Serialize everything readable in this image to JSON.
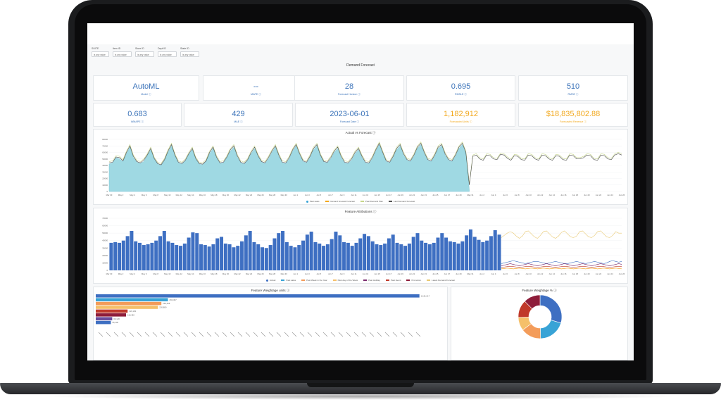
{
  "filters": [
    {
      "label": "SUITE",
      "value": "is any value"
    },
    {
      "label": "Item ID",
      "value": "is any value"
    },
    {
      "label": "Store ID",
      "value": "is any value"
    },
    {
      "label": "Dept ID",
      "value": "is any value"
    },
    {
      "label": "State ID",
      "value": "is any value"
    }
  ],
  "dashboard_title": "Demand Forecast",
  "kpis_row1": [
    {
      "value": "AutoML",
      "label": "Model"
    },
    {
      "value": "--",
      "label": "MAPE"
    },
    {
      "value": "28",
      "label": "Forecast Horizon"
    },
    {
      "value": "0.695",
      "label": "RMSLE"
    },
    {
      "value": "510",
      "label": "RMSE"
    }
  ],
  "kpis_row2": [
    {
      "value": "0.683",
      "label": "WMAPE"
    },
    {
      "value": "429",
      "label": "MAE"
    },
    {
      "value": "2023-06-01",
      "label": "Forecast Date"
    },
    {
      "value": "1,182,912",
      "label": "Forecasted Units"
    },
    {
      "value": "$18,835,802.88",
      "label": "Forecasted Revenue"
    }
  ],
  "colors": {
    "blue": "#3b73b9",
    "orange": "#f2a81d",
    "teal_fill": "#9fd9e3",
    "bar_blue": "#3e6fc2"
  },
  "chart_data": [
    {
      "type": "area",
      "title": "Actual vs Forecast",
      "legend": [
        "Past sales",
        "Demand forecast Forecast",
        "Past Demand Plan",
        "Last Demand Forecast"
      ],
      "ylim": [
        0,
        80000
      ],
      "y_ticks": [
        "80000",
        "70000",
        "60000",
        "50000",
        "40000",
        "30000",
        "20000",
        "10000",
        "0"
      ],
      "x_ticks": [
        "Mar 30",
        "May 2",
        "May 4",
        "May 6",
        "May 8",
        "May 10",
        "May 12",
        "May 14",
        "May 16",
        "May 18",
        "May 20",
        "May 22",
        "May 24",
        "May 26",
        "May 28",
        "May 30",
        "Jun 1",
        "Jun 3",
        "Jun 5",
        "Jun 7",
        "Jun 9",
        "Jun 11",
        "Jun 13",
        "Jun 15",
        "Jun 17",
        "Jun 19",
        "Jun 21",
        "Jun 23",
        "Jun 25",
        "Jun 27",
        "Jun 29",
        "May 31",
        "Jun 2",
        "Jun 4",
        "Jun 6",
        "Jun 8",
        "Jun 10",
        "Jun 12",
        "Jun 14",
        "Jun 16",
        "Jun 18",
        "Jun 20",
        "Jun 22",
        "Jun 24",
        "Jun 26"
      ],
      "past_sales": [
        42000,
        44000,
        52000,
        50000,
        46000,
        58000,
        68000,
        52000,
        45000,
        43000,
        46000,
        55000,
        64000,
        50000,
        42000,
        40000,
        48000,
        60000,
        70000,
        55000,
        44000,
        42000,
        47000,
        57000,
        64000,
        50000,
        42000,
        41000,
        46000,
        58000,
        66000,
        52000,
        43000,
        44000,
        52000,
        62000,
        68000,
        53000,
        44000,
        42000,
        48000,
        58000,
        66000,
        54000,
        45000,
        43000,
        50000,
        60000,
        68000,
        54000,
        44000,
        43000,
        50000,
        62000,
        70000,
        56000,
        46000,
        44000,
        52000,
        64000,
        70000,
        55000,
        45000,
        44000,
        50000,
        60000,
        66000,
        52000,
        44000,
        43000,
        48000,
        58000,
        64000,
        52000,
        44000,
        43000,
        50000,
        62000,
        72000,
        58000,
        46000,
        44000,
        52000,
        64000,
        70000,
        56000,
        48000,
        46000,
        54000,
        66000,
        72000,
        58000,
        48000,
        46000,
        54000,
        66000,
        70000,
        56000,
        48000,
        46000,
        54000,
        66000,
        72000,
        58000,
        2000
      ],
      "forecast": [
        44000,
        45000,
        53000,
        52000,
        47000,
        60000,
        70000,
        54000,
        46000,
        44000,
        48000,
        56000,
        66000,
        51000,
        43000,
        41000,
        49000,
        62000,
        72000,
        56000,
        45000,
        43000,
        48000,
        58000,
        66000,
        51000,
        43000,
        42000,
        47000,
        60000,
        68000,
        53000,
        44000,
        45000,
        53000,
        64000,
        70000,
        55000,
        45000,
        43000,
        49000,
        60000,
        68000,
        55000,
        46000,
        44000,
        52000,
        62000,
        70000,
        56000,
        45000,
        44000,
        52000,
        64000,
        72000,
        58000,
        47000,
        45000,
        54000,
        66000,
        72000,
        56000,
        46000,
        45000,
        52000,
        62000,
        68000,
        54000,
        45000,
        44000,
        50000,
        60000,
        66000,
        54000,
        45000,
        44000,
        52000,
        64000,
        74000,
        60000,
        47000,
        45000,
        54000,
        66000,
        72000,
        58000,
        49000,
        47000,
        56000,
        68000,
        74000,
        60000,
        49000,
        47000,
        56000,
        68000,
        72000,
        58000,
        49000,
        47000,
        56000,
        68000,
        74000,
        60000,
        10000,
        54000,
        56000,
        50000,
        48000,
        56000,
        55000,
        50000,
        49000,
        57000,
        56000,
        51000,
        48000,
        55000,
        54000,
        49000,
        48000,
        56000,
        55000,
        50000,
        48000,
        56000,
        55000,
        50000,
        48000,
        55000,
        54000,
        49000,
        48000,
        56000,
        55000,
        50000,
        50000,
        52000,
        56000,
        55000,
        49000,
        48000,
        56000,
        55000,
        50000,
        49000,
        56000,
        58000,
        56000
      ],
      "demand_plan": [
        46000,
        47000,
        55000,
        54000,
        49000,
        62000,
        72000,
        56000,
        48000,
        46000,
        50000,
        58000,
        68000,
        53000,
        45000,
        43000,
        51000,
        64000,
        74000,
        58000,
        47000,
        45000,
        50000,
        60000,
        68000,
        53000,
        45000,
        44000,
        49000,
        62000,
        70000,
        55000,
        46000,
        47000,
        55000,
        66000,
        72000,
        57000,
        47000,
        45000,
        51000,
        62000,
        70000,
        57000,
        48000,
        46000,
        54000,
        64000,
        72000,
        58000,
        47000,
        46000,
        54000,
        66000,
        74000,
        60000,
        49000,
        47000,
        56000,
        68000,
        74000,
        58000,
        48000,
        47000,
        54000,
        64000,
        70000,
        56000,
        47000,
        46000,
        52000,
        62000,
        68000,
        56000,
        47000,
        46000,
        54000,
        66000,
        76000,
        62000,
        49000,
        47000,
        56000,
        68000,
        74000,
        60000,
        51000,
        49000,
        58000,
        70000,
        76000,
        62000,
        51000,
        49000,
        58000,
        70000,
        74000,
        60000,
        51000,
        49000,
        58000,
        70000,
        76000,
        62000,
        12000,
        56000,
        58000,
        52000,
        50000,
        58000,
        57000,
        52000,
        51000,
        59000,
        58000,
        53000,
        50000,
        57000,
        56000,
        51000,
        50000,
        58000,
        57000,
        52000,
        50000,
        58000,
        57000,
        52000,
        50000,
        57000,
        56000,
        51000,
        50000,
        58000,
        57000,
        52000,
        52000,
        54000,
        58000,
        57000,
        51000,
        50000,
        58000,
        57000,
        52000,
        51000,
        58000,
        60000,
        58000
      ]
    },
    {
      "type": "bar",
      "title": "Feature Attributions",
      "legend": [
        "Actual",
        "Past sales",
        "Past Week in the Year",
        "Past day of the Week",
        "Past Holiday",
        "Past Event",
        "Promotion",
        "Latest Demand Forecast"
      ],
      "ylim": [
        0,
        70000
      ],
      "y_ticks": [
        "70000",
        "60000",
        "50000",
        "40000",
        "30000",
        "20000",
        "10000",
        "0"
      ],
      "x_ticks": [
        "Mar 30",
        "May 2",
        "May 4",
        "May 6",
        "May 8",
        "May 10",
        "May 12",
        "May 14",
        "May 16",
        "May 18",
        "May 20",
        "May 22",
        "May 24",
        "May 26",
        "May 28",
        "May 30",
        "Jun 1",
        "Jun 3",
        "Jun 5",
        "Jun 7",
        "Jun 9",
        "Jun 11",
        "Jun 13",
        "Jun 15",
        "Jun 17",
        "Jun 19",
        "Jun 21",
        "Jun 23",
        "Jun 25",
        "Jun 27",
        "Jun 29",
        "May 31",
        "Jun 2",
        "Jun 4",
        "Jun 6",
        "Jun 8",
        "Jun 10",
        "Jun 12",
        "Jun 14",
        "Jun 16",
        "Jun 18",
        "Jun 20",
        "Jun 22",
        "Jun 24",
        "Jun 26"
      ],
      "values": [
        37000,
        38000,
        37000,
        40000,
        46000,
        53000,
        39000,
        37000,
        34000,
        35000,
        37000,
        40000,
        46000,
        53000,
        39000,
        37000,
        34000,
        33000,
        36000,
        44000,
        51000,
        50000,
        35000,
        34000,
        32000,
        35000,
        43000,
        45000,
        36000,
        35000,
        31000,
        33000,
        39000,
        47000,
        53000,
        38000,
        35000,
        31000,
        30000,
        34000,
        43000,
        50000,
        53000,
        38000,
        33000,
        31000,
        34000,
        40000,
        48000,
        52000,
        38000,
        36000,
        33000,
        35000,
        42000,
        52000,
        47000,
        38000,
        37000,
        33000,
        37000,
        43000,
        49000,
        46000,
        39000,
        35000,
        34000,
        36000,
        43000,
        48000,
        37000,
        35000,
        33000,
        36000,
        45000,
        50000,
        40000,
        37000,
        35000,
        37000,
        44000,
        50000,
        44000,
        39000,
        38000,
        36000,
        39000,
        47000,
        55000,
        45000,
        41000,
        38000,
        40000,
        46000,
        54000,
        48000
      ],
      "forecast_line": [
        44000,
        47000,
        50000,
        52000,
        50000,
        46000,
        43000,
        46000,
        52000,
        53000,
        49000,
        45000,
        43000,
        47000,
        52000,
        53000,
        49000,
        45000,
        43000,
        46000,
        51000,
        53000,
        49000,
        45000,
        44000,
        46000,
        52000,
        53000,
        49000,
        45000,
        44000,
        47000,
        52000,
        53000,
        49000,
        45000,
        44000,
        47000,
        52000,
        50000,
        50000
      ],
      "low_series": [
        {
          "color": "#3e6fc2",
          "values": [
            9000,
            10000,
            11000,
            12000,
            13000,
            12000,
            11000,
            10000,
            9000,
            10000,
            11000,
            12000,
            12000,
            11000,
            10000,
            9000,
            10000,
            11000,
            12000,
            11000,
            10000,
            9000,
            9000,
            10000,
            11000,
            12000,
            11000,
            10000,
            9000,
            10000,
            11000,
            12000,
            11000,
            10000,
            9000,
            10000,
            12000,
            13000,
            12000,
            11000,
            12000
          ]
        },
        {
          "color": "#7b2b6e",
          "values": [
            6000,
            7000,
            8000,
            9000,
            8000,
            7000,
            6000,
            7000,
            8000,
            9000,
            8000,
            7000,
            6000,
            7000,
            8000,
            9000,
            8000,
            7000,
            6000,
            7000,
            8000,
            9000,
            8000,
            7000,
            6000,
            7000,
            8000,
            9000,
            8000,
            7000,
            6000,
            7000,
            8000,
            9000,
            8000,
            7000,
            6000,
            7000,
            8000,
            9000,
            8000
          ]
        },
        {
          "color": "#c0392b",
          "values": [
            4000,
            4500,
            5000,
            5500,
            5000,
            4500,
            4000,
            4500,
            5000,
            5500,
            5000,
            4500,
            4000,
            4500,
            5000,
            5500,
            5000,
            4500,
            4000,
            4500,
            5000,
            5500,
            5000,
            4500,
            4000,
            4500,
            5000,
            5500,
            5000,
            4500,
            4000,
            4500,
            5000,
            5500,
            5000,
            4500,
            4000,
            4500,
            5000,
            5500,
            5000
          ]
        },
        {
          "color": "#f39c12",
          "values": [
            2000,
            2500,
            3000,
            2500,
            2000,
            2500,
            3000,
            2500,
            2000,
            2500,
            3000,
            2500,
            2000,
            2500,
            3000,
            2500,
            2000,
            2500,
            3000,
            2500,
            2000,
            2500,
            3000,
            2500,
            2000,
            2500,
            3000,
            2500,
            2000,
            2500,
            3000,
            2500,
            2000,
            2500,
            3000,
            2500,
            2000,
            2500,
            3000,
            2500,
            2000
          ]
        }
      ]
    },
    {
      "type": "bar",
      "orientation": "horizontal",
      "title": "Feature Weightage units",
      "bars": [
        {
          "value": 1181217,
          "label": "1,181,217",
          "color": "#3e6fc2"
        },
        {
          "value": 263497,
          "label": "263,497",
          "color": "#38a3d6"
        },
        {
          "value": 239458,
          "label": "239,458",
          "color": "#f39c5a"
        },
        {
          "value": 226880,
          "label": "226,880",
          "color": "#f5c06a"
        },
        {
          "value": 116193,
          "label": "116,193",
          "color": "#c0392b"
        },
        {
          "value": 110482,
          "label": "110,482",
          "color": "#8e1d3a"
        },
        {
          "value": 60120,
          "label": "60,120",
          "color": "#6a4c9c"
        },
        {
          "value": 55100,
          "label": "55,100",
          "color": "#3e6fc2"
        }
      ],
      "xlim": [
        0,
        1200000
      ]
    },
    {
      "type": "pie",
      "title": "Feature Weightage %",
      "slices": [
        {
          "label": "",
          "value": 29.6,
          "color": "#3e6fc2"
        },
        {
          "label": "",
          "value": 20.0,
          "color": "#38a3d6"
        },
        {
          "label": "",
          "value": 15.0,
          "color": "#f39c5a"
        },
        {
          "label": "",
          "value": 10.0,
          "color": "#f5c06a"
        },
        {
          "label": "",
          "value": 13.0,
          "color": "#c0392b"
        },
        {
          "label": "",
          "value": 12.4,
          "color": "#8e1d3a"
        }
      ]
    }
  ]
}
